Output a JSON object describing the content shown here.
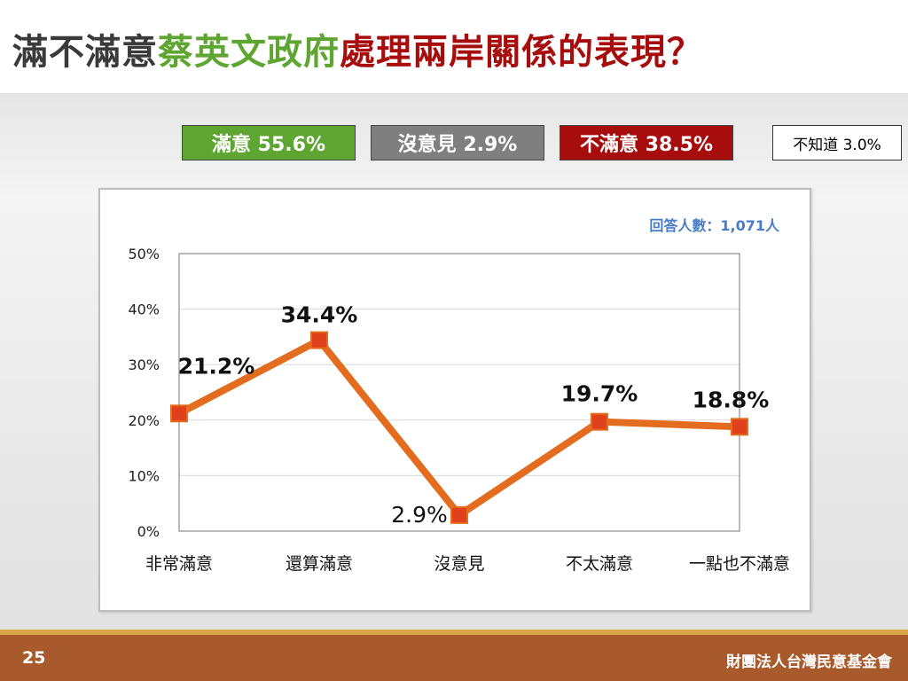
{
  "title": {
    "part1": "滿不滿意",
    "part2": "蔡英文政府",
    "part3": "處理兩岸關係的表現？",
    "colors": {
      "part1": "#3a3a3a",
      "part2": "#5ea532",
      "part3": "#a80d0d"
    }
  },
  "summary": {
    "satisfied": "滿意 55.6%",
    "no_opinion": "沒意見 2.9%",
    "dissatisfied": "不滿意 38.5%",
    "unknown": "不知道 3.0%"
  },
  "chart_data": {
    "type": "line",
    "title": "",
    "xlabel": "",
    "ylabel": "",
    "categories": [
      "非常滿意",
      "還算滿意",
      "沒意見",
      "不太滿意",
      "一點也不滿意"
    ],
    "values": [
      21.2,
      34.4,
      2.9,
      19.7,
      18.8
    ],
    "data_labels": [
      "21.2%",
      "34.4%",
      "2.9%",
      "19.7%",
      "18.8%"
    ],
    "ylim": [
      0,
      50
    ],
    "yticks": [
      "0%",
      "10%",
      "20%",
      "30%",
      "40%",
      "50%"
    ],
    "grid": true,
    "annotation": "回答人數：1,071人",
    "colors": {
      "line": "#e36c1e",
      "marker": "#e0401c",
      "annotation": "#4a7dc9"
    }
  },
  "footer": {
    "page_number": "25",
    "org_name": "財團法人台灣民意基金會"
  }
}
